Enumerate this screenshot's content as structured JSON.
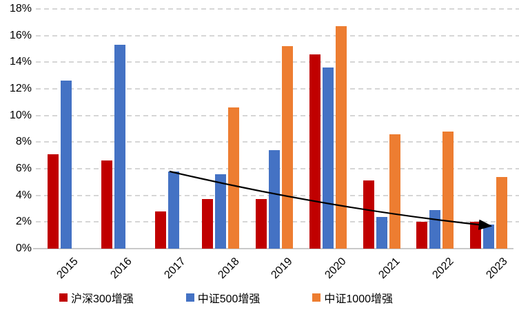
{
  "chart_data": {
    "type": "bar",
    "title": "",
    "categories": [
      "2015",
      "2016",
      "2017",
      "2018",
      "2019",
      "2020",
      "2021",
      "2022",
      "2023"
    ],
    "series": [
      {
        "name": "沪深300增强",
        "color": "#C00000",
        "values": [
          7.1,
          6.6,
          2.8,
          3.7,
          3.7,
          14.6,
          5.1,
          2.0,
          2.0
        ]
      },
      {
        "name": "中证500增强",
        "color": "#4472C4",
        "values": [
          12.6,
          15.3,
          5.8,
          5.6,
          7.4,
          13.6,
          2.4,
          2.9,
          1.8
        ]
      },
      {
        "name": "中证1000增强",
        "color": "#ED7D31",
        "values": [
          null,
          null,
          null,
          10.6,
          15.2,
          16.7,
          8.6,
          8.8,
          5.4
        ]
      }
    ],
    "y_axis": {
      "min": 0,
      "max": 18,
      "step": 2,
      "unit": "percent",
      "tick_labels": [
        "0%",
        "2%",
        "4%",
        "6%",
        "8%",
        "10%",
        "12%",
        "14%",
        "16%",
        "18%"
      ],
      "grid": "dashed"
    },
    "x_axis": {
      "tick_labels": [
        "2015",
        "2016",
        "2017",
        "2018",
        "2019",
        "2020",
        "2021",
        "2022",
        "2023"
      ],
      "label_rotation_deg": -45
    },
    "legend": {
      "position": "bottom",
      "entries": [
        "沪深300增强",
        "中证500增强",
        "中证1000增强"
      ]
    },
    "annotations": [
      {
        "type": "arrow",
        "color": "#000000",
        "from": {
          "category": "2017",
          "series": "中证500增强",
          "value": 5.8
        },
        "to": {
          "category": "2023",
          "series": "中证500增强",
          "value": 1.7
        }
      }
    ],
    "colors": {
      "gridline": "#D6D6D6",
      "axis_line": "#C9C9C9",
      "background": "#FFFFFF",
      "text": "#000000"
    }
  }
}
